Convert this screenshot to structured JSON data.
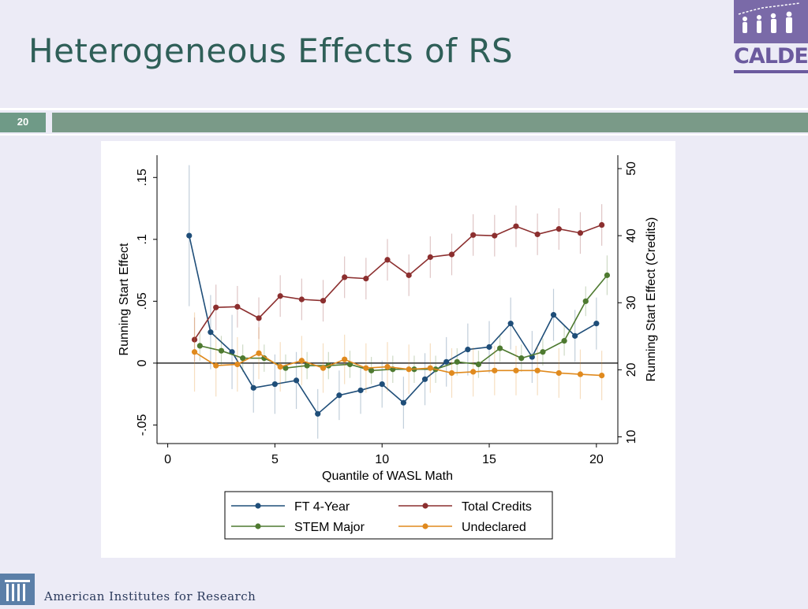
{
  "slide": {
    "title": "Heterogeneous Effects of RS",
    "number": "20",
    "logo_text": "CALDER",
    "footer": "American Institutes for Research"
  },
  "colors": {
    "title": "#2f5f58",
    "accent_bar": "#7a9a88",
    "logo": "#6b5a9e",
    "FT 4-Year": "#1f4e79",
    "STEM Major": "#4e7a30",
    "Total Credits": "#8c2f2f",
    "Undeclared": "#e08a1e"
  },
  "chart_data": {
    "type": "line",
    "xlabel": "Quantile of WASL Math",
    "ylabel": "Running Start Effect",
    "y2label": "Running Start Effect (Credits)",
    "xlim": [
      -0.5,
      21
    ],
    "ylim": [
      -0.065,
      0.168
    ],
    "y2lim": [
      9,
      52
    ],
    "xticks": [
      "0",
      "5",
      "10",
      "15",
      "20"
    ],
    "yticks": [
      "-.05",
      "0",
      ".05",
      ".1",
      ".15"
    ],
    "y2ticks": [
      "10",
      "20",
      "30",
      "40",
      "50"
    ],
    "legend_position": "bottom",
    "series": [
      {
        "name": "FT 4-Year",
        "axis": "left",
        "x": [
          1,
          2,
          3,
          4,
          5,
          6,
          7,
          8,
          9,
          10,
          11,
          12,
          13,
          14,
          15,
          16,
          17,
          18,
          19,
          20
        ],
        "y": [
          0.103,
          0.025,
          0.009,
          -0.02,
          -0.017,
          -0.014,
          -0.041,
          -0.026,
          -0.022,
          -0.017,
          -0.032,
          -0.013,
          0.001,
          0.011,
          0.013,
          0.032,
          0.005,
          0.039,
          0.022,
          0.032
        ],
        "err": [
          0.057,
          0.03,
          0.03,
          0.02,
          0.024,
          0.023,
          0.02,
          0.02,
          0.019,
          0.019,
          0.021,
          0.021,
          0.02,
          0.021,
          0.021,
          0.021,
          0.021,
          0.021,
          0.021,
          0.021
        ]
      },
      {
        "name": "Total Credits",
        "axis": "right",
        "x": [
          1.25,
          2.25,
          3.25,
          4.25,
          5.25,
          6.25,
          7.25,
          8.25,
          9.25,
          10.25,
          11.25,
          12.25,
          13.25,
          14.25,
          15.25,
          16.25,
          17.25,
          18.25,
          19.25,
          20.25
        ],
        "y": [
          24.5,
          29.3,
          29.4,
          27.7,
          31,
          30.5,
          30.3,
          33.8,
          33.6,
          36.4,
          34.1,
          36.8,
          37.2,
          40.1,
          40,
          41.4,
          40.2,
          41,
          40.4,
          41.6
        ],
        "err": [
          3.3,
          3.4,
          3.1,
          3.1,
          3.1,
          3.1,
          3.1,
          3.1,
          3.1,
          3.1,
          3.1,
          3.1,
          3.1,
          3.1,
          3.1,
          3.1,
          3.1,
          3.1,
          3.1,
          3.1
        ]
      },
      {
        "name": "STEM Major",
        "axis": "left",
        "x": [
          1.5,
          2.5,
          3.5,
          4.5,
          5.5,
          6.5,
          7.5,
          8.5,
          9.5,
          10.5,
          11.5,
          12.5,
          13.5,
          14.5,
          15.5,
          16.5,
          17.5,
          18.5,
          19.5,
          20.5
        ],
        "y": [
          0.014,
          0.01,
          0.004,
          0.004,
          -0.004,
          -0.002,
          -0.002,
          -0.001,
          -0.006,
          -0.005,
          -0.005,
          -0.005,
          0.001,
          -0.001,
          0.012,
          0.004,
          0.009,
          0.018,
          0.05,
          0.071
        ],
        "err": [
          0.012,
          0.012,
          0.011,
          0.011,
          0.011,
          0.011,
          0.011,
          0.011,
          0.011,
          0.011,
          0.011,
          0.011,
          0.011,
          0.011,
          0.011,
          0.011,
          0.011,
          0.012,
          0.012,
          0.016
        ]
      },
      {
        "name": "Undeclared",
        "axis": "left",
        "x": [
          1.25,
          2.25,
          3.25,
          4.25,
          5.25,
          6.25,
          7.25,
          8.25,
          9.25,
          10.25,
          11.25,
          12.25,
          13.25,
          14.25,
          15.25,
          16.25,
          17.25,
          18.25,
          19.25,
          20.25
        ],
        "y": [
          0.009,
          -0.002,
          -0.001,
          0.008,
          -0.003,
          0.002,
          -0.004,
          0.003,
          -0.004,
          -0.003,
          -0.005,
          -0.004,
          -0.008,
          -0.007,
          -0.006,
          -0.006,
          -0.006,
          -0.008,
          -0.009,
          -0.01
        ],
        "err": [
          0.032,
          0.025,
          0.022,
          0.021,
          0.02,
          0.02,
          0.02,
          0.02,
          0.02,
          0.02,
          0.02,
          0.02,
          0.02,
          0.02,
          0.02,
          0.02,
          0.02,
          0.02,
          0.02,
          0.02
        ]
      }
    ]
  }
}
